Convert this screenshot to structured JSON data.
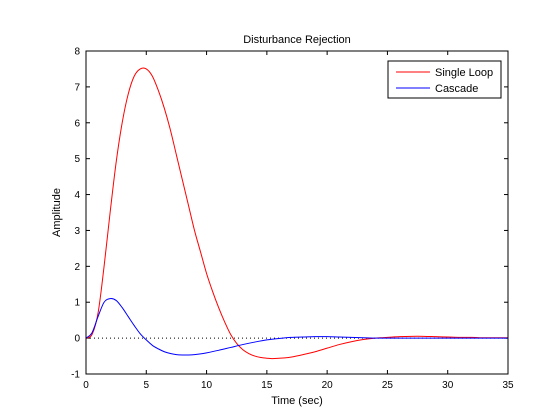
{
  "window": {
    "background": "#ffffff"
  },
  "chart_data": {
    "type": "line",
    "title": "Disturbance Rejection",
    "xlabel": "Time (sec)",
    "ylabel": "Amplitude",
    "xlim": [
      0,
      35
    ],
    "ylim": [
      -1,
      8
    ],
    "xticks": [
      0,
      5,
      10,
      15,
      20,
      25,
      30,
      35
    ],
    "yticks": [
      -1,
      0,
      1,
      2,
      3,
      4,
      5,
      6,
      7,
      8
    ],
    "grid": false,
    "legend": {
      "placement": "top-right"
    },
    "reference_line": {
      "y": 0,
      "style": "dotted",
      "color": "#000000"
    },
    "series": [
      {
        "name": "Single Loop",
        "color": "#ff0000",
        "x": [
          0,
          0.5,
          1,
          1.5,
          2,
          2.5,
          3,
          3.5,
          4,
          4.5,
          5,
          5.5,
          6,
          6.5,
          7,
          7.5,
          8,
          8.5,
          9,
          9.5,
          10,
          10.5,
          11,
          11.5,
          12,
          12.5,
          13,
          13.5,
          14,
          14.5,
          15,
          15.5,
          16,
          16.5,
          17,
          18,
          19,
          20,
          21,
          22,
          23,
          24,
          25,
          26,
          27,
          28,
          29,
          30,
          31,
          32,
          33,
          34,
          35
        ],
        "y": [
          0,
          0.1,
          0.7,
          2.0,
          3.5,
          4.9,
          6.0,
          6.8,
          7.3,
          7.5,
          7.5,
          7.3,
          6.9,
          6.4,
          5.8,
          5.1,
          4.4,
          3.7,
          3.0,
          2.4,
          1.8,
          1.3,
          0.85,
          0.45,
          0.1,
          -0.15,
          -0.32,
          -0.43,
          -0.5,
          -0.54,
          -0.56,
          -0.57,
          -0.56,
          -0.55,
          -0.53,
          -0.46,
          -0.38,
          -0.28,
          -0.18,
          -0.1,
          -0.04,
          0.0,
          0.02,
          0.04,
          0.05,
          0.05,
          0.04,
          0.03,
          0.02,
          0.02,
          0.01,
          0.01,
          0.01
        ]
      },
      {
        "name": "Cascade",
        "color": "#0000ff",
        "x": [
          0,
          0.5,
          1,
          1.5,
          2,
          2.5,
          3,
          3.5,
          4,
          4.5,
          5,
          5.5,
          6,
          6.5,
          7,
          7.5,
          8,
          8.5,
          9,
          9.5,
          10,
          11,
          12,
          13,
          14,
          15,
          16,
          17,
          18,
          19,
          20,
          21,
          22,
          23,
          24,
          25,
          26,
          27,
          28,
          29,
          30,
          31,
          32,
          33,
          34,
          35
        ],
        "y": [
          0,
          0.15,
          0.6,
          1.0,
          1.1,
          1.05,
          0.85,
          0.6,
          0.35,
          0.12,
          -0.05,
          -0.2,
          -0.3,
          -0.38,
          -0.43,
          -0.46,
          -0.47,
          -0.47,
          -0.46,
          -0.44,
          -0.41,
          -0.34,
          -0.26,
          -0.18,
          -0.11,
          -0.05,
          -0.01,
          0.02,
          0.03,
          0.04,
          0.04,
          0.03,
          0.02,
          0.01,
          0.0,
          0.0,
          0.0,
          0.0,
          0.0,
          0.0,
          0.0,
          0.0,
          0.0,
          0.0,
          0.0,
          0.0
        ]
      }
    ]
  }
}
